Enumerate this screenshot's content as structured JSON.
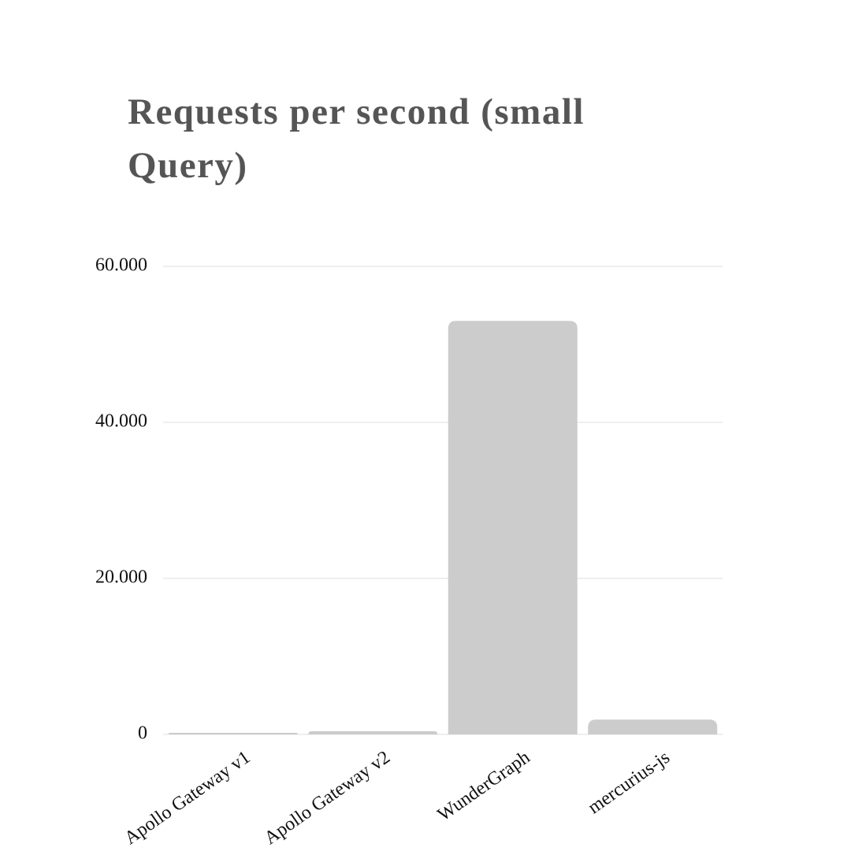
{
  "chart_data": {
    "type": "bar",
    "title": "Requests per second (small Query)",
    "categories": [
      "Apollo Gateway v1",
      "Apollo Gateway v2",
      "WunderGraph",
      "mercurius-js"
    ],
    "values": [
      200,
      400,
      53000,
      1900
    ],
    "color": "#cccccc",
    "ylim": [
      0,
      60000
    ],
    "yticks": [
      0,
      {
        "value": 20000,
        "label": "20.000"
      },
      {
        "value": 40000,
        "label": "40.000"
      },
      {
        "value": 60000,
        "label": "60.000"
      }
    ],
    "grid": true
  }
}
